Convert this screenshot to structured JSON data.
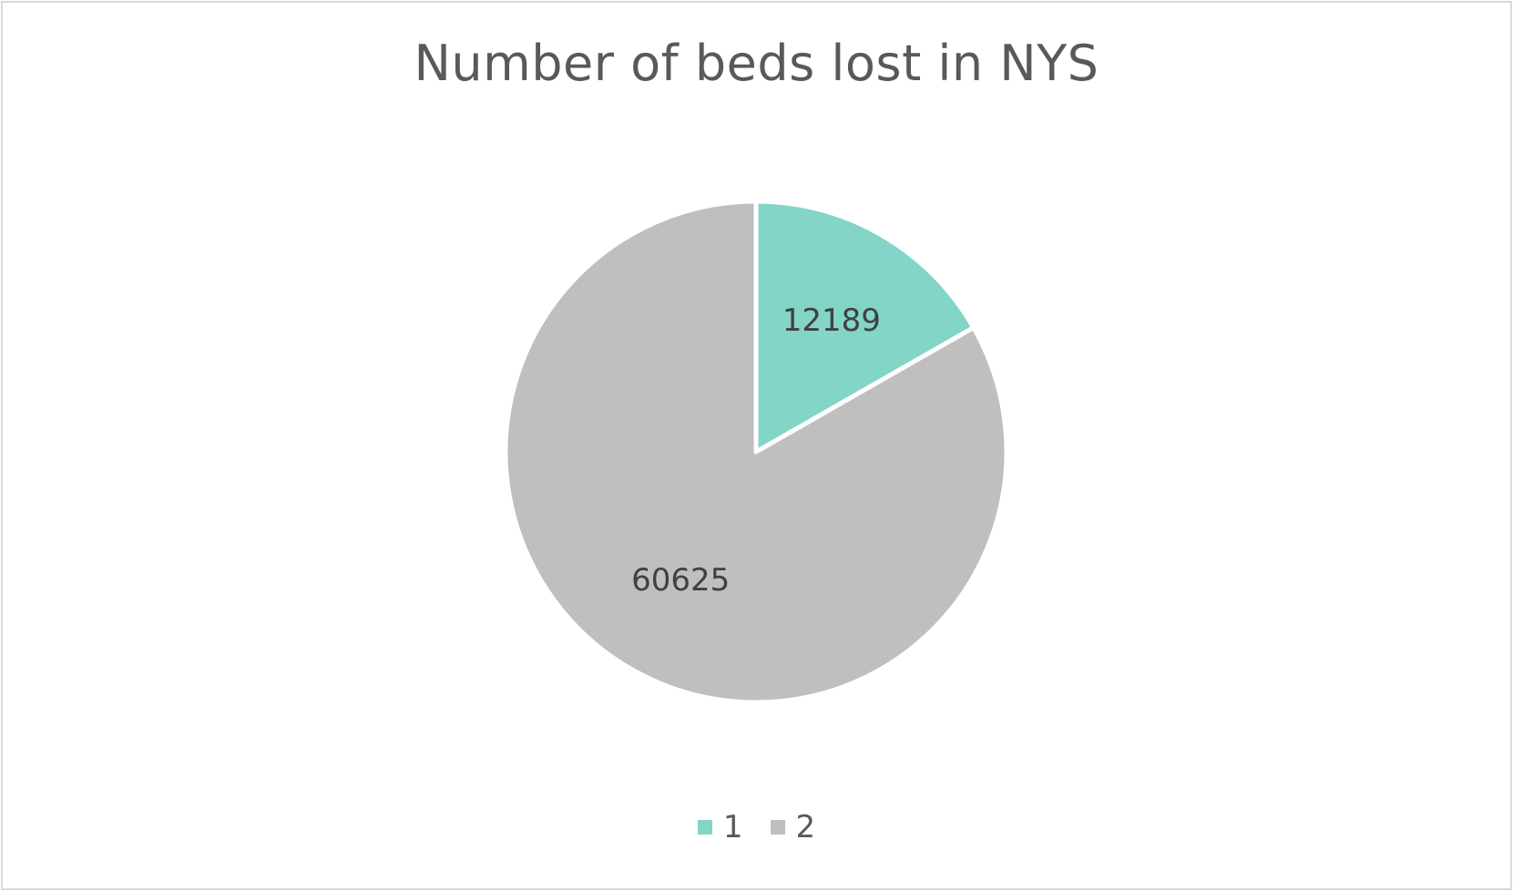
{
  "chart_data": {
    "type": "pie",
    "title": "Number of beds lost in NYS",
    "categories": [
      "1",
      "2"
    ],
    "values": [
      12189,
      60625
    ],
    "colors": [
      "#82d5c7",
      "#bfbfbf"
    ],
    "data_labels": [
      "12189",
      "60625"
    ],
    "legend_position": "bottom",
    "start_angle": "12 o'clock, clockwise"
  }
}
